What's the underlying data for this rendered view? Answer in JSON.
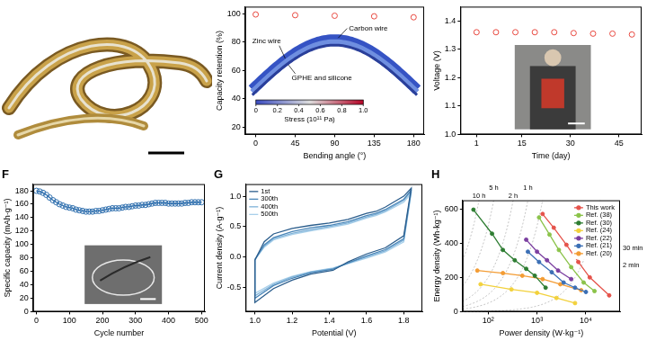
{
  "chart_data": [
    {
      "type": "scatter",
      "x_label": "Bending angle (°)",
      "y_label": "Capacity retention (%)",
      "x": [
        0,
        45,
        90,
        135,
        180
      ],
      "values": [
        99.5,
        99,
        98.6,
        98.2,
        97.5
      ],
      "color": "#e8483f",
      "marker": "open_circle",
      "line_style": "none",
      "xlim": [
        -12,
        192
      ],
      "xticks": [
        0,
        45,
        90,
        135,
        180
      ],
      "ylim": [
        15,
        105
      ],
      "yticks": [
        20,
        40,
        60,
        80,
        100
      ],
      "grid": false,
      "annotations": [
        "Carbon wire",
        "Zinc wire",
        "GPHE and silicone"
      ],
      "colorbar": {
        "label": "Stress (10¹¹ Pa)",
        "range": [
          0,
          1
        ],
        "ticks": [
          0,
          0.2,
          0.4,
          0.6,
          0.8,
          {
            "value": 1,
            "label": "1.0"
          }
        ]
      }
    },
    {
      "type": "scatter",
      "x_label": "Time (day)",
      "y_label": "Voltage (V)",
      "x": [
        1,
        7,
        13,
        19,
        25,
        31,
        37,
        43,
        49
      ],
      "values": [
        1.36,
        1.36,
        1.36,
        1.36,
        1.36,
        1.357,
        1.355,
        1.355,
        1.352
      ],
      "color": "#e8483f",
      "marker": "open_circle",
      "line_style": "none",
      "xlim": [
        -4,
        52
      ],
      "xticks": [
        1,
        15,
        30,
        45
      ],
      "ylim": [
        1.0,
        1.45
      ],
      "yticks": [
        {
          "value": 1,
          "label": "1.0"
        },
        1.1,
        1.2,
        1.3,
        1.4
      ],
      "grid": false
    },
    {
      "type": "line",
      "title": "F",
      "x_label": "Cycle number",
      "y_label": "Specific capacity (mAh·g⁻¹)",
      "x": [
        0,
        10,
        20,
        30,
        40,
        50,
        60,
        70,
        80,
        90,
        100,
        110,
        120,
        130,
        140,
        150,
        160,
        170,
        180,
        190,
        200,
        210,
        220,
        230,
        240,
        250,
        260,
        270,
        280,
        290,
        300,
        310,
        320,
        330,
        340,
        350,
        360,
        370,
        380,
        390,
        400,
        410,
        420,
        430,
        440,
        450,
        460,
        470,
        480,
        490,
        500
      ],
      "values": [
        180,
        179,
        177,
        174,
        170,
        166,
        163,
        160,
        158,
        156,
        155,
        154,
        152,
        151,
        150,
        149,
        149,
        149,
        150,
        150,
        151,
        152,
        153,
        154,
        154,
        154,
        155,
        156,
        156,
        157,
        158,
        158,
        159,
        159,
        160,
        161,
        162,
        162,
        162,
        162,
        161,
        161,
        161,
        161,
        161,
        162,
        162,
        163,
        163,
        163,
        163
      ],
      "color": "#2f6fae",
      "marker": "open_circle",
      "line_style": "solid",
      "xlim": [
        -10,
        510
      ],
      "xticks": [
        0,
        100,
        200,
        300,
        400,
        500
      ],
      "ylim": [
        0,
        190
      ],
      "yticks": [
        0,
        20,
        40,
        60,
        80,
        100,
        120,
        140,
        160,
        180
      ],
      "grid": false
    },
    {
      "type": "line",
      "title": "G",
      "x_label": "Potential (V)",
      "y_label": "Current density (A·g⁻¹)",
      "x": [
        1.0,
        1.05,
        1.1,
        1.2,
        1.3,
        1.4,
        1.5,
        1.6,
        1.65,
        1.7,
        1.8,
        1.84,
        1.8,
        1.7,
        1.6,
        1.5,
        1.42,
        1.3,
        1.2,
        1.1,
        1.0,
        1.0
      ],
      "series": [
        {
          "name": "1st",
          "color": "#2b5d8c",
          "values": [
            -0.05,
            0.25,
            0.38,
            0.47,
            0.52,
            0.56,
            0.62,
            0.72,
            0.75,
            0.82,
            1.0,
            1.13,
            0.35,
            0.15,
            0.05,
            -0.08,
            -0.22,
            -0.28,
            -0.38,
            -0.52,
            -0.75,
            -0.05
          ]
        },
        {
          "name": "300th",
          "color": "#4a86b8",
          "values": [
            -0.05,
            0.2,
            0.32,
            0.42,
            0.48,
            0.52,
            0.58,
            0.68,
            0.72,
            0.78,
            0.95,
            1.1,
            0.3,
            0.12,
            0.02,
            -0.1,
            -0.2,
            -0.26,
            -0.35,
            -0.47,
            -0.68,
            -0.05
          ]
        },
        {
          "name": "400th",
          "color": "#7fb2d8",
          "values": [
            -0.04,
            0.18,
            0.3,
            0.39,
            0.45,
            0.5,
            0.56,
            0.66,
            0.7,
            0.76,
            0.93,
            1.08,
            0.28,
            0.1,
            0.0,
            -0.1,
            -0.19,
            -0.25,
            -0.33,
            -0.45,
            -0.64,
            -0.04
          ]
        },
        {
          "name": "500th",
          "color": "#a9d0ea",
          "values": [
            -0.04,
            0.16,
            0.28,
            0.37,
            0.43,
            0.48,
            0.54,
            0.64,
            0.68,
            0.74,
            0.9,
            1.05,
            0.25,
            0.08,
            -0.02,
            -0.11,
            -0.18,
            -0.24,
            -0.32,
            -0.43,
            -0.6,
            -0.04
          ]
        }
      ],
      "marker": "none",
      "line_style": "solid",
      "legend": "upper left",
      "xlim": [
        0.95,
        1.9
      ],
      "xticks": [
        {
          "value": 1,
          "label": "1.0"
        },
        1.2,
        1.4,
        1.6,
        1.8
      ],
      "ylim": [
        -0.9,
        1.2
      ],
      "yticks": [
        -0.5,
        {
          "value": 0,
          "label": "0.0"
        },
        0.5,
        {
          "value": 1,
          "label": "1.0"
        }
      ],
      "grid": false
    },
    {
      "type": "line",
      "title": "H",
      "log": "x",
      "x_label": "Power density (W·kg⁻¹)",
      "y_label": "Energy density (Wh·kg⁻¹)",
      "series": [
        {
          "name": "This work",
          "color": "#e5534b",
          "x": [
            1300,
            2200,
            4000,
            7000,
            12000,
            30000
          ],
          "values": [
            570,
            490,
            390,
            290,
            200,
            95
          ]
        },
        {
          "name": "Ref. (38)",
          "color": "#8bc34a",
          "x": [
            1100,
            1800,
            2800,
            5000,
            9000,
            15000
          ],
          "values": [
            550,
            450,
            360,
            260,
            170,
            120
          ]
        },
        {
          "name": "Ref. (30)",
          "color": "#2e7d32",
          "x": [
            50,
            120,
            200,
            350,
            600,
            900,
            1500
          ],
          "values": [
            595,
            455,
            360,
            300,
            250,
            210,
            140
          ]
        },
        {
          "name": "Ref. (24)",
          "color": "#f2d13c",
          "x": [
            70,
            300,
            1000,
            2500,
            6000
          ],
          "values": [
            160,
            130,
            110,
            80,
            50
          ]
        },
        {
          "name": "Ref. (22)",
          "color": "#7b3fa0",
          "x": [
            600,
            1000,
            1600,
            2700,
            5000
          ],
          "values": [
            420,
            350,
            300,
            240,
            190
          ]
        },
        {
          "name": "Ref. (21)",
          "color": "#3b6fb5",
          "x": [
            650,
            1100,
            2000,
            3500,
            6000,
            10000
          ],
          "values": [
            350,
            290,
            230,
            170,
            140,
            115
          ]
        },
        {
          "name": "Ref. (20)",
          "color": "#f39c34",
          "x": [
            60,
            200,
            500,
            1300,
            3000,
            8000
          ],
          "values": [
            240,
            225,
            210,
            190,
            160,
            125
          ]
        }
      ],
      "marker": "circle",
      "line_style": "solid",
      "legend": "upper right",
      "xlim": [
        30,
        50000
      ],
      "xticks": [
        {
          "value": 100,
          "label": "10²"
        },
        {
          "value": 1000,
          "label": "10³"
        },
        {
          "value": 10000,
          "label": "10⁴"
        }
      ],
      "ylim": [
        0,
        650
      ],
      "yticks": [
        0,
        200,
        400,
        600
      ],
      "grid": false,
      "time_lines": [
        {
          "label": "10 h",
          "hours": 10
        },
        {
          "label": "5 h",
          "hours": 5
        },
        {
          "label": "2 h",
          "hours": 2
        },
        {
          "label": "1 h",
          "hours": 1
        },
        {
          "label": "30 min",
          "hours": 0.5
        },
        {
          "label": "2 min",
          "hours": 0.0333
        }
      ]
    }
  ]
}
